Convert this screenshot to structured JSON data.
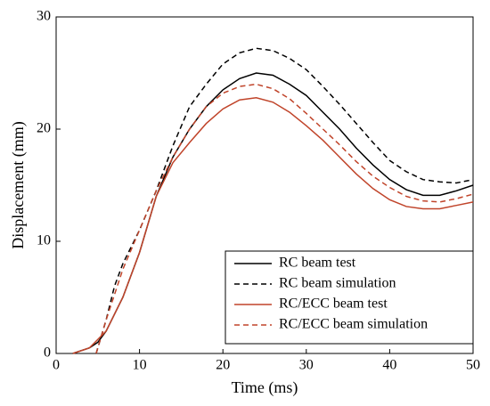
{
  "chart_data": {
    "type": "line",
    "xlabel": "Time (ms)",
    "ylabel": "Displacement (mm)",
    "xlim": [
      0,
      50
    ],
    "xticks": [
      0,
      10,
      20,
      30,
      40,
      50
    ],
    "ylim": [
      0,
      30
    ],
    "yticks": [
      0,
      10,
      20,
      30
    ],
    "legend": "lower right",
    "series": [
      {
        "name": "RC beam test",
        "color": "#000000",
        "dashed": false,
        "x": [
          2,
          4,
          5,
          6,
          8,
          10,
          12,
          14,
          16,
          18,
          20,
          22,
          24,
          26,
          28,
          30,
          32,
          34,
          36,
          38,
          40,
          42,
          44,
          46,
          48,
          50
        ],
        "values": [
          0,
          0.5,
          1,
          2,
          5,
          9,
          14,
          17.5,
          20,
          22,
          23.5,
          24.5,
          25,
          24.8,
          24,
          23,
          21.5,
          20,
          18.3,
          16.8,
          15.5,
          14.6,
          14.1,
          14.1,
          14.5,
          15
        ]
      },
      {
        "name": "RC beam simulation",
        "color": "#000000",
        "dashed": true,
        "x": [
          4.8,
          5,
          6,
          7,
          8,
          10,
          12,
          14,
          16,
          18,
          20,
          22,
          24,
          26,
          28,
          30,
          32,
          34,
          36,
          38,
          40,
          42,
          44,
          46,
          48,
          50
        ],
        "values": [
          0,
          0.5,
          3,
          6,
          8,
          11,
          14.5,
          18.5,
          22,
          24,
          25.8,
          26.8,
          27.2,
          27,
          26.3,
          25.3,
          23.8,
          22.2,
          20.5,
          18.8,
          17.2,
          16.2,
          15.5,
          15.3,
          15.2,
          15.5
        ]
      },
      {
        "name": "RC/ECC beam test",
        "color": "#c0442a",
        "dashed": false,
        "x": [
          2,
          4,
          6,
          8,
          10,
          12,
          14,
          16,
          18,
          20,
          22,
          24,
          26,
          28,
          30,
          32,
          34,
          36,
          38,
          40,
          42,
          44,
          46,
          48,
          50
        ],
        "values": [
          0,
          0.5,
          2,
          5,
          9,
          14,
          17,
          18.8,
          20.5,
          21.8,
          22.6,
          22.8,
          22.4,
          21.5,
          20.3,
          19,
          17.5,
          16,
          14.7,
          13.7,
          13.1,
          12.9,
          12.9,
          13.2,
          13.5
        ]
      },
      {
        "name": "RC/ECC beam simulation",
        "color": "#c0442a",
        "dashed": true,
        "x": [
          4.8,
          6,
          8,
          10,
          12,
          14,
          16,
          18,
          20,
          22,
          24,
          26,
          28,
          30,
          32,
          34,
          36,
          38,
          40,
          42,
          44,
          46,
          48,
          50
        ],
        "values": [
          0,
          3,
          7.5,
          11,
          14.5,
          17.5,
          20,
          22,
          23.2,
          23.8,
          24,
          23.6,
          22.7,
          21.4,
          20,
          18.6,
          17.1,
          15.8,
          14.8,
          14,
          13.6,
          13.5,
          13.8,
          14.2
        ]
      }
    ]
  }
}
